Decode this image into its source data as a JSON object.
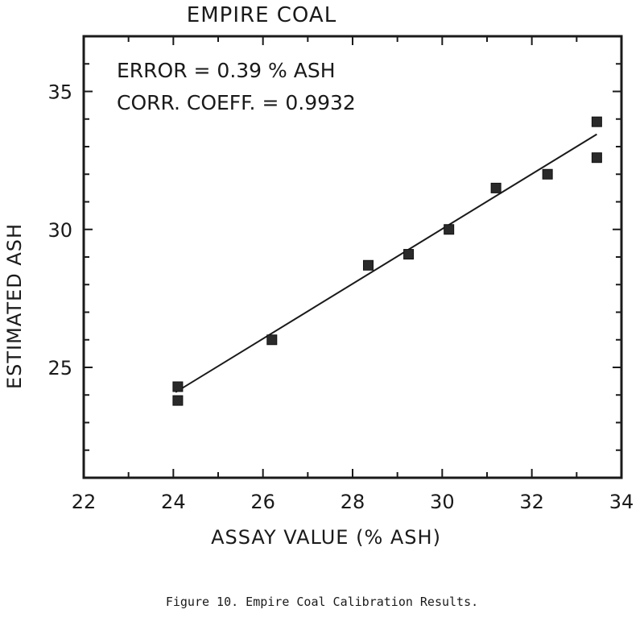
{
  "chart_data": {
    "type": "scatter",
    "title": "EMPIRE COAL",
    "xlabel": "ASSAY VALUE (% ASH)",
    "ylabel": "ESTIMATED ASH",
    "xlim": [
      22,
      34
    ],
    "ylim": [
      21,
      37
    ],
    "x_ticks": [
      22,
      24,
      26,
      28,
      30,
      32,
      34
    ],
    "y_ticks": [
      25,
      30,
      35
    ],
    "x_minor_step": 1,
    "y_minor_step": 1,
    "grid": false,
    "annotations": [
      "ERROR = 0.39 % ASH",
      "CORR. COEFF. = 0.9932"
    ],
    "points": [
      {
        "x": 24.1,
        "y": 24.3
      },
      {
        "x": 24.1,
        "y": 23.8
      },
      {
        "x": 26.2,
        "y": 26.0
      },
      {
        "x": 28.35,
        "y": 28.7
      },
      {
        "x": 29.25,
        "y": 29.1
      },
      {
        "x": 30.15,
        "y": 30.0
      },
      {
        "x": 31.2,
        "y": 31.5
      },
      {
        "x": 32.35,
        "y": 32.0
      },
      {
        "x": 33.45,
        "y": 33.9
      },
      {
        "x": 33.45,
        "y": 32.6
      }
    ],
    "fit_line": {
      "x": [
        24.05,
        33.45
      ],
      "y": [
        24.1,
        33.45
      ]
    }
  },
  "caption": "Figure 10.  Empire Coal Calibration Results."
}
